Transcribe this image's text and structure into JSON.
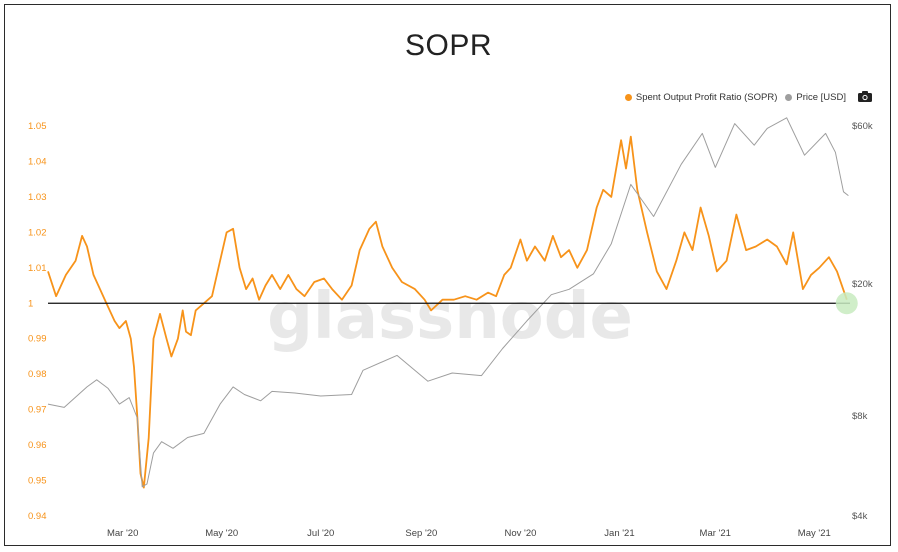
{
  "chart_data": {
    "type": "line",
    "title": "SOPR",
    "watermark": "glassnode",
    "legend": {
      "placement": "top-right",
      "entries": [
        {
          "name": "Spent Output Profit Ratio (SOPR)",
          "color": "#f7931a"
        },
        {
          "name": "Price [USD]",
          "color": "#9e9e9e"
        }
      ],
      "camera_icon": "camera-icon"
    },
    "x_axis": {
      "range": [
        "2020-01-15",
        "2021-05-23"
      ],
      "ticks": [
        {
          "date": "2020-03-01",
          "label": "Mar '20"
        },
        {
          "date": "2020-05-01",
          "label": "May '20"
        },
        {
          "date": "2020-07-01",
          "label": "Jul '20"
        },
        {
          "date": "2020-09-01",
          "label": "Sep '20"
        },
        {
          "date": "2020-11-01",
          "label": "Nov '20"
        },
        {
          "date": "2021-01-01",
          "label": "Jan '21"
        },
        {
          "date": "2021-03-01",
          "label": "Mar '21"
        },
        {
          "date": "2021-05-01",
          "label": "May '21"
        }
      ]
    },
    "y_left": {
      "range": [
        0.94,
        1.05
      ],
      "color": "#f7931a",
      "ticks": [
        "0.94",
        "0.95",
        "0.96",
        "0.97",
        "0.98",
        "0.99",
        "1",
        "1.01",
        "1.02",
        "1.03",
        "1.04",
        "1.05"
      ]
    },
    "y_right": {
      "scale": "log",
      "range": [
        4000,
        60000
      ],
      "color": "#555555",
      "ticks": [
        {
          "value": 4000,
          "label": "$4k"
        },
        {
          "value": 8000,
          "label": "$8k"
        },
        {
          "value": 20000,
          "label": "$20k"
        },
        {
          "value": 60000,
          "label": "$60k"
        }
      ]
    },
    "reference_line": {
      "y": 1.0,
      "color": "#111111"
    },
    "marker": {
      "date": "2021-05-21",
      "y": 1.0,
      "color": "#c8ebc0"
    },
    "series": [
      {
        "name": "Spent Output Profit Ratio (SOPR)",
        "axis": "left",
        "color": "#f7931a",
        "points": [
          [
            "2020-01-15",
            1.009
          ],
          [
            "2020-01-20",
            1.002
          ],
          [
            "2020-01-26",
            1.008
          ],
          [
            "2020-02-01",
            1.012
          ],
          [
            "2020-02-05",
            1.019
          ],
          [
            "2020-02-08",
            1.016
          ],
          [
            "2020-02-12",
            1.008
          ],
          [
            "2020-02-16",
            1.004
          ],
          [
            "2020-02-20",
            1.0
          ],
          [
            "2020-02-25",
            0.995
          ],
          [
            "2020-02-28",
            0.993
          ],
          [
            "2020-03-03",
            0.995
          ],
          [
            "2020-03-06",
            0.99
          ],
          [
            "2020-03-08",
            0.982
          ],
          [
            "2020-03-10",
            0.968
          ],
          [
            "2020-03-12",
            0.952
          ],
          [
            "2020-03-14",
            0.948
          ],
          [
            "2020-03-17",
            0.962
          ],
          [
            "2020-03-20",
            0.99
          ],
          [
            "2020-03-24",
            0.997
          ],
          [
            "2020-03-28",
            0.99
          ],
          [
            "2020-03-31",
            0.985
          ],
          [
            "2020-04-04",
            0.99
          ],
          [
            "2020-04-07",
            0.998
          ],
          [
            "2020-04-09",
            0.992
          ],
          [
            "2020-04-12",
            0.991
          ],
          [
            "2020-04-15",
            0.998
          ],
          [
            "2020-04-20",
            1.0
          ],
          [
            "2020-04-25",
            1.002
          ],
          [
            "2020-04-30",
            1.012
          ],
          [
            "2020-05-04",
            1.02
          ],
          [
            "2020-05-08",
            1.021
          ],
          [
            "2020-05-12",
            1.01
          ],
          [
            "2020-05-16",
            1.004
          ],
          [
            "2020-05-20",
            1.007
          ],
          [
            "2020-05-24",
            1.001
          ],
          [
            "2020-05-28",
            1.005
          ],
          [
            "2020-06-01",
            1.008
          ],
          [
            "2020-06-06",
            1.004
          ],
          [
            "2020-06-11",
            1.008
          ],
          [
            "2020-06-16",
            1.004
          ],
          [
            "2020-06-21",
            1.002
          ],
          [
            "2020-06-27",
            1.006
          ],
          [
            "2020-07-03",
            1.007
          ],
          [
            "2020-07-08",
            1.004
          ],
          [
            "2020-07-14",
            1.001
          ],
          [
            "2020-07-20",
            1.005
          ],
          [
            "2020-07-25",
            1.015
          ],
          [
            "2020-07-31",
            1.021
          ],
          [
            "2020-08-04",
            1.023
          ],
          [
            "2020-08-08",
            1.016
          ],
          [
            "2020-08-14",
            1.01
          ],
          [
            "2020-08-20",
            1.006
          ],
          [
            "2020-08-28",
            1.004
          ],
          [
            "2020-09-03",
            1.001
          ],
          [
            "2020-09-07",
            0.998
          ],
          [
            "2020-09-14",
            1.001
          ],
          [
            "2020-09-21",
            1.001
          ],
          [
            "2020-09-28",
            1.002
          ],
          [
            "2020-10-05",
            1.001
          ],
          [
            "2020-10-12",
            1.003
          ],
          [
            "2020-10-17",
            1.002
          ],
          [
            "2020-10-22",
            1.008
          ],
          [
            "2020-10-26",
            1.01
          ],
          [
            "2020-11-01",
            1.018
          ],
          [
            "2020-11-05",
            1.012
          ],
          [
            "2020-11-10",
            1.016
          ],
          [
            "2020-11-16",
            1.012
          ],
          [
            "2020-11-21",
            1.019
          ],
          [
            "2020-11-26",
            1.013
          ],
          [
            "2020-12-01",
            1.015
          ],
          [
            "2020-12-06",
            1.01
          ],
          [
            "2020-12-12",
            1.015
          ],
          [
            "2020-12-18",
            1.027
          ],
          [
            "2020-12-22",
            1.032
          ],
          [
            "2020-12-27",
            1.03
          ],
          [
            "2021-01-02",
            1.046
          ],
          [
            "2021-01-05",
            1.038
          ],
          [
            "2021-01-08",
            1.047
          ],
          [
            "2021-01-12",
            1.032
          ],
          [
            "2021-01-18",
            1.02
          ],
          [
            "2021-01-24",
            1.009
          ],
          [
            "2021-01-30",
            1.004
          ],
          [
            "2021-02-05",
            1.012
          ],
          [
            "2021-02-10",
            1.02
          ],
          [
            "2021-02-15",
            1.015
          ],
          [
            "2021-02-20",
            1.027
          ],
          [
            "2021-02-25",
            1.019
          ],
          [
            "2021-03-02",
            1.009
          ],
          [
            "2021-03-08",
            1.012
          ],
          [
            "2021-03-14",
            1.025
          ],
          [
            "2021-03-20",
            1.015
          ],
          [
            "2021-03-26",
            1.016
          ],
          [
            "2021-04-02",
            1.018
          ],
          [
            "2021-04-08",
            1.016
          ],
          [
            "2021-04-14",
            1.011
          ],
          [
            "2021-04-18",
            1.02
          ],
          [
            "2021-04-24",
            1.004
          ],
          [
            "2021-04-29",
            1.008
          ],
          [
            "2021-05-04",
            1.01
          ],
          [
            "2021-05-10",
            1.013
          ],
          [
            "2021-05-15",
            1.009
          ],
          [
            "2021-05-21",
            1.001
          ]
        ]
      },
      {
        "name": "Price [USD]",
        "axis": "right",
        "color": "#9e9e9e",
        "points": [
          [
            "2020-01-15",
            8700
          ],
          [
            "2020-01-25",
            8500
          ],
          [
            "2020-02-08",
            9800
          ],
          [
            "2020-02-14",
            10300
          ],
          [
            "2020-02-21",
            9700
          ],
          [
            "2020-02-28",
            8700
          ],
          [
            "2020-03-05",
            9100
          ],
          [
            "2020-03-10",
            7900
          ],
          [
            "2020-03-13",
            4900
          ],
          [
            "2020-03-16",
            5000
          ],
          [
            "2020-03-20",
            6200
          ],
          [
            "2020-03-25",
            6700
          ],
          [
            "2020-04-01",
            6400
          ],
          [
            "2020-04-10",
            6900
          ],
          [
            "2020-04-20",
            7100
          ],
          [
            "2020-04-30",
            8700
          ],
          [
            "2020-05-08",
            9800
          ],
          [
            "2020-05-15",
            9300
          ],
          [
            "2020-05-25",
            8900
          ],
          [
            "2020-06-01",
            9500
          ],
          [
            "2020-06-15",
            9400
          ],
          [
            "2020-07-01",
            9200
          ],
          [
            "2020-07-20",
            9300
          ],
          [
            "2020-07-27",
            11000
          ],
          [
            "2020-08-17",
            12200
          ],
          [
            "2020-09-05",
            10200
          ],
          [
            "2020-09-20",
            10800
          ],
          [
            "2020-10-08",
            10600
          ],
          [
            "2020-10-21",
            12800
          ],
          [
            "2020-11-05",
            15500
          ],
          [
            "2020-11-20",
            18600
          ],
          [
            "2020-12-01",
            19300
          ],
          [
            "2020-12-16",
            21500
          ],
          [
            "2020-12-27",
            26500
          ],
          [
            "2021-01-08",
            40000
          ],
          [
            "2021-01-22",
            32000
          ],
          [
            "2021-02-08",
            46000
          ],
          [
            "2021-02-21",
            57000
          ],
          [
            "2021-03-01",
            45000
          ],
          [
            "2021-03-13",
            61000
          ],
          [
            "2021-03-25",
            52500
          ],
          [
            "2021-04-02",
            59000
          ],
          [
            "2021-04-14",
            63500
          ],
          [
            "2021-04-25",
            49000
          ],
          [
            "2021-05-08",
            57000
          ],
          [
            "2021-05-14",
            50000
          ],
          [
            "2021-05-19",
            38000
          ],
          [
            "2021-05-22",
            37000
          ]
        ]
      }
    ]
  }
}
